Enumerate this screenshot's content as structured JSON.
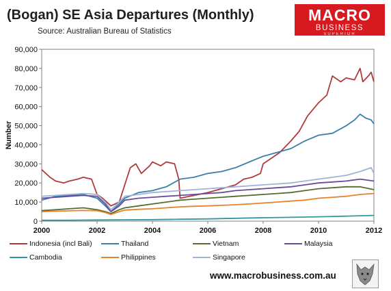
{
  "header": {
    "title": "(Bogan) SE Asia Departures (Monthly)",
    "subtitle": "Source: Australian Bureau of Statistics"
  },
  "logo": {
    "line1": "MACRO",
    "line2": "BUSINESS",
    "line3": "SUPERIOR"
  },
  "footer": {
    "url": "www.macrobusiness.com.au"
  },
  "chart_data": {
    "type": "line",
    "ylabel": "Number",
    "xlabel": "",
    "ylim": [
      0,
      90000
    ],
    "xlim": [
      2000,
      2012
    ],
    "y_ticks": [
      "0",
      "10,000",
      "20,000",
      "30,000",
      "40,000",
      "50,000",
      "60,000",
      "70,000",
      "80,000",
      "90,000"
    ],
    "x_ticks": [
      "2000",
      "2002",
      "2004",
      "2006",
      "2008",
      "2010",
      "2012"
    ],
    "grid": false,
    "legend_position": "bottom",
    "series": [
      {
        "name": "Indonesia (incl Bali)",
        "color": "#b03a3a",
        "x": [
          2000,
          2000.3,
          2000.5,
          2000.8,
          2001,
          2001.3,
          2001.5,
          2001.8,
          2002,
          2002.2,
          2002.5,
          2002.8,
          2003,
          2003.2,
          2003.4,
          2003.6,
          2003.9,
          2004,
          2004.3,
          2004.5,
          2004.8,
          2004.95,
          2005,
          2005.5,
          2006,
          2006.5,
          2007,
          2007.3,
          2007.6,
          2007.9,
          2008,
          2008.3,
          2008.6,
          2009,
          2009.3,
          2009.6,
          2010,
          2010.3,
          2010.5,
          2010.8,
          2011,
          2011.3,
          2011.5,
          2011.6,
          2011.8,
          2011.9,
          2012
        ],
        "y": [
          27000,
          23000,
          21000,
          20000,
          21000,
          22000,
          23000,
          22000,
          14000,
          12000,
          8000,
          10000,
          19000,
          28000,
          30000,
          25000,
          29000,
          31000,
          29000,
          31000,
          30000,
          22000,
          12000,
          13500,
          15000,
          17000,
          19000,
          22000,
          23000,
          25000,
          30000,
          33000,
          36000,
          42000,
          47000,
          55000,
          62000,
          66000,
          76000,
          73000,
          75000,
          74000,
          80000,
          73000,
          76000,
          78000,
          73000
        ]
      },
      {
        "name": "Thailand",
        "color": "#3a7fa8",
        "x": [
          2000,
          2000.5,
          2001,
          2001.5,
          2002,
          2002.3,
          2002.5,
          2002.8,
          2003,
          2003.5,
          2004,
          2004.5,
          2005,
          2005.5,
          2006,
          2006.5,
          2007,
          2007.5,
          2008,
          2008.5,
          2009,
          2009.5,
          2010,
          2010.5,
          2011,
          2011.3,
          2011.5,
          2011.7,
          2011.9,
          2012
        ],
        "y": [
          11000,
          13000,
          13500,
          14000,
          12000,
          8000,
          5000,
          9000,
          12000,
          15000,
          16000,
          18000,
          22000,
          23000,
          25000,
          26000,
          28000,
          31000,
          34000,
          36000,
          38000,
          42000,
          45000,
          46000,
          50000,
          53000,
          56000,
          54000,
          53000,
          51000
        ]
      },
      {
        "name": "Vietnam",
        "color": "#556b2f",
        "x": [
          2000,
          2000.5,
          2001,
          2001.5,
          2002,
          2002.3,
          2002.5,
          2002.8,
          2003,
          2003.5,
          2004,
          2004.5,
          2005,
          2005.5,
          2006,
          2006.5,
          2007,
          2007.5,
          2008,
          2008.5,
          2009,
          2009.5,
          2010,
          2010.5,
          2011,
          2011.5,
          2012
        ],
        "y": [
          5500,
          6000,
          6500,
          7000,
          6000,
          5000,
          4000,
          6000,
          7000,
          8000,
          9000,
          10000,
          11000,
          11500,
          12000,
          12500,
          13000,
          13500,
          14000,
          14500,
          15000,
          16000,
          17000,
          17500,
          18000,
          18000,
          16500
        ]
      },
      {
        "name": "Malaysia",
        "color": "#6a4a9a",
        "x": [
          2000,
          2000.5,
          2001,
          2001.5,
          2002,
          2002.3,
          2002.5,
          2002.8,
          2003,
          2003.5,
          2004,
          2004.5,
          2005,
          2005.5,
          2006,
          2006.5,
          2007,
          2007.5,
          2008,
          2008.5,
          2009,
          2009.5,
          2010,
          2010.5,
          2011,
          2011.5,
          2012
        ],
        "y": [
          12000,
          12500,
          13000,
          13500,
          13000,
          9000,
          5000,
          8000,
          11000,
          12000,
          12500,
          13000,
          13500,
          14000,
          14500,
          15000,
          16000,
          16500,
          17000,
          17500,
          18000,
          19000,
          20000,
          20500,
          21000,
          22000,
          21000
        ]
      },
      {
        "name": "Cambodia",
        "color": "#2f9aa0",
        "x": [
          2000,
          2001,
          2002,
          2003,
          2004,
          2005,
          2006,
          2007,
          2008,
          2009,
          2010,
          2011,
          2012
        ],
        "y": [
          500,
          500,
          600,
          700,
          800,
          1000,
          1200,
          1500,
          1800,
          2000,
          2300,
          2600,
          3000
        ]
      },
      {
        "name": "Philippines",
        "color": "#e8822a",
        "x": [
          2000,
          2000.5,
          2001,
          2001.5,
          2002,
          2002.3,
          2002.5,
          2002.8,
          2003,
          2003.5,
          2004,
          2004.5,
          2005,
          2005.5,
          2006,
          2006.5,
          2007,
          2007.5,
          2008,
          2008.5,
          2009,
          2009.5,
          2010,
          2010.5,
          2011,
          2011.5,
          2012
        ],
        "y": [
          5000,
          5200,
          5400,
          5600,
          5500,
          4500,
          3500,
          5000,
          5800,
          6200,
          6500,
          7000,
          7500,
          7800,
          8000,
          8300,
          8600,
          9000,
          9500,
          10000,
          10500,
          11000,
          12000,
          12500,
          13000,
          14000,
          14500
        ]
      },
      {
        "name": "Singapore",
        "color": "#9fb3d9",
        "x": [
          2000,
          2000.5,
          2001,
          2001.5,
          2002,
          2002.3,
          2002.5,
          2002.8,
          2003,
          2003.5,
          2004,
          2004.5,
          2005,
          2005.5,
          2006,
          2006.5,
          2007,
          2007.5,
          2008,
          2008.5,
          2009,
          2009.5,
          2010,
          2010.5,
          2011,
          2011.5,
          2011.9,
          2012
        ],
        "y": [
          13000,
          13500,
          14000,
          14500,
          14000,
          10000,
          6000,
          10000,
          13000,
          14000,
          15000,
          15500,
          16000,
          16500,
          17000,
          17500,
          18000,
          18500,
          19000,
          19500,
          20000,
          21000,
          22000,
          23000,
          24000,
          26000,
          28000,
          25000
        ]
      }
    ]
  }
}
